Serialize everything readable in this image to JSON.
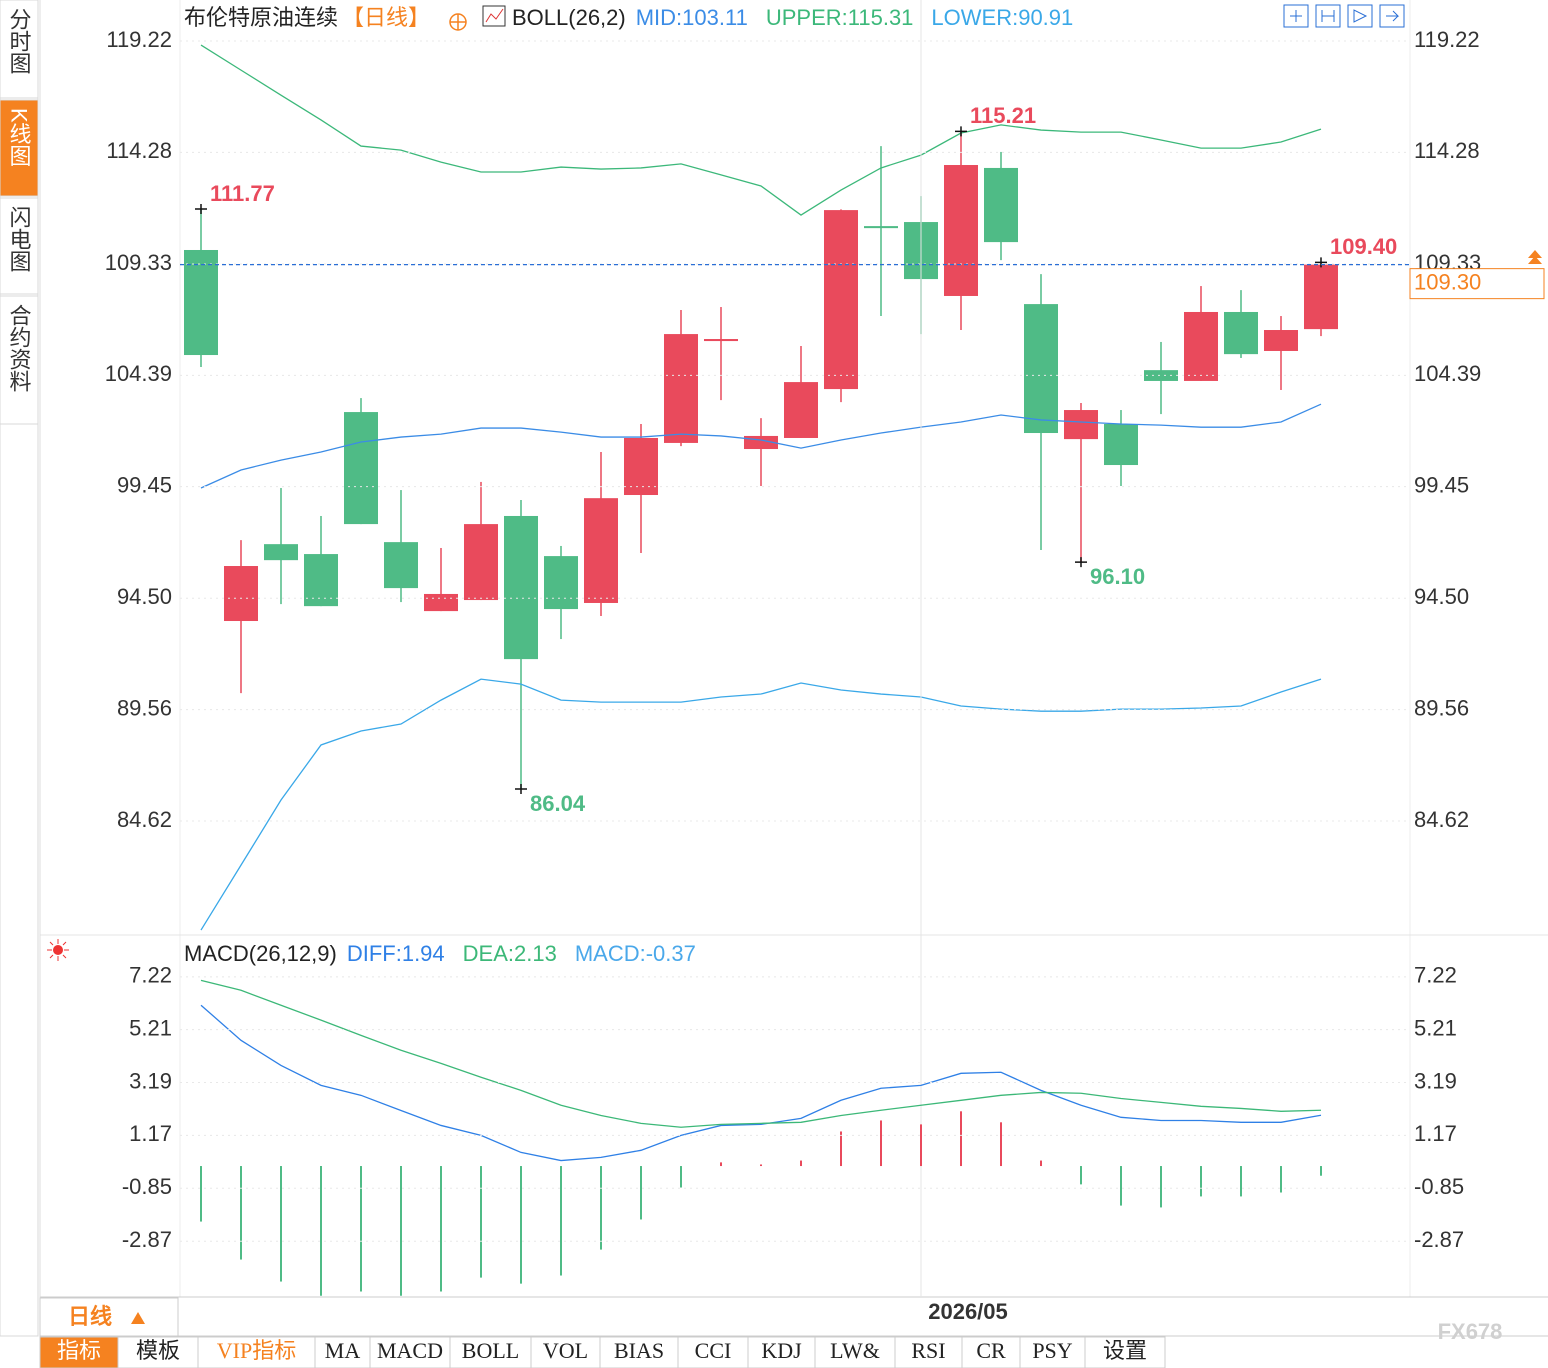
{
  "sidebar": {
    "tabs": [
      "分时图",
      "K线图",
      "闪电图",
      "合约资料"
    ],
    "active": 1
  },
  "chart_data": [
    {
      "type": "candlestick",
      "title": "布伦特原油连续",
      "period": "【日线】",
      "indicator": "BOLL(26,2)",
      "categories": [
        null,
        null,
        null,
        null,
        null,
        null,
        null,
        null,
        null,
        null,
        null,
        null,
        null,
        null,
        null,
        null,
        null,
        null,
        "2026/05",
        null,
        null,
        null,
        null,
        null,
        null,
        null,
        null,
        null,
        null
      ],
      "open": [
        109.95,
        93.49,
        96.9,
        96.46,
        102.76,
        96.99,
        93.93,
        94.42,
        98.15,
        96.37,
        94.29,
        99.08,
        101.39,
        105.91,
        101.12,
        101.61,
        103.78,
        111.01,
        111.19,
        107.91,
        113.59,
        107.55,
        101.56,
        102.23,
        104.62,
        104.14,
        107.2,
        105.47,
        106.44
      ],
      "high": [
        111.77,
        97.08,
        99.39,
        98.15,
        103.38,
        99.3,
        96.73,
        99.66,
        98.86,
        96.82,
        100.99,
        102.23,
        107.29,
        107.42,
        102.49,
        105.69,
        111.75,
        114.56,
        112.34,
        115.21,
        114.3,
        108.88,
        103.16,
        102.85,
        105.87,
        108.35,
        108.17,
        107.02,
        109.4
      ],
      "low": [
        104.76,
        90.29,
        94.24,
        94.15,
        97.79,
        94.33,
        93.93,
        94.42,
        86.04,
        92.69,
        93.71,
        96.51,
        101.25,
        103.29,
        99.48,
        101.61,
        103.2,
        107.02,
        106.22,
        106.4,
        109.5,
        96.64,
        96.1,
        99.48,
        102.67,
        104.14,
        105.16,
        103.74,
        106.13
      ],
      "close": [
        105.29,
        95.93,
        96.19,
        94.15,
        97.79,
        94.95,
        94.69,
        97.79,
        91.8,
        94.02,
        98.94,
        101.61,
        106.22,
        106.0,
        101.7,
        104.09,
        111.72,
        110.92,
        108.66,
        113.72,
        110.3,
        101.83,
        102.85,
        100.41,
        104.14,
        107.2,
        105.33,
        106.4,
        109.3
      ],
      "up_color": "#e94a5c",
      "down_color": "#4fbb86",
      "series": [
        {
          "name": "MID:103.11",
          "color": "#3b8ce6",
          "values": [
            99.39,
            100.19,
            100.63,
            100.99,
            101.43,
            101.65,
            101.78,
            102.05,
            102.05,
            101.87,
            101.65,
            101.65,
            101.78,
            101.7,
            101.52,
            101.16,
            101.52,
            101.83,
            102.09,
            102.32,
            102.63,
            102.41,
            102.32,
            102.23,
            102.18,
            102.09,
            102.09,
            102.32,
            103.11
          ]
        },
        {
          "name": "UPPER:115.31",
          "color": "#3cb87a",
          "values": [
            119.04,
            117.93,
            116.82,
            115.72,
            114.56,
            114.38,
            113.85,
            113.41,
            113.41,
            113.63,
            113.54,
            113.59,
            113.77,
            113.28,
            112.79,
            111.5,
            112.61,
            113.59,
            114.16,
            115.14,
            115.5,
            115.27,
            115.18,
            115.18,
            114.83,
            114.47,
            114.47,
            114.74,
            115.31
          ]
        },
        {
          "name": "LOWER:90.91",
          "color": "#3aa8e8",
          "values": [
            79.78,
            82.66,
            85.55,
            87.99,
            88.61,
            88.92,
            89.98,
            90.91,
            90.69,
            89.98,
            89.89,
            89.89,
            89.89,
            90.12,
            90.25,
            90.74,
            90.43,
            90.25,
            90.12,
            89.72,
            89.58,
            89.49,
            89.49,
            89.58,
            89.58,
            89.63,
            89.72,
            90.34,
            90.91
          ]
        }
      ],
      "ylim": [
        79.56,
        119.71
      ],
      "yticks": [
        119.22,
        114.28,
        109.33,
        104.39,
        99.45,
        {
          "value": 94.5,
          "label": "94.50"
        },
        89.56,
        84.62
      ],
      "annotations": [
        {
          "value": 111.77,
          "label": "111.77"
        },
        {
          "value": 115.21,
          "label": "115.21"
        },
        {
          "value": 86.04,
          "label": "86.04"
        },
        {
          "value": 96.1,
          "label": "96.10"
        },
        {
          "value": 109.4,
          "label": "109.40"
        }
      ],
      "last_price": {
        "value": 109.3,
        "label": "109.30"
      },
      "grid": true
    },
    {
      "type": "macd",
      "title": "MACD(26,12,9)",
      "series": [
        {
          "name": "DIFF:1.94",
          "color": "#2f80e6",
          "values": [
            6.14,
            4.8,
            3.84,
            3.08,
            2.7,
            2.12,
            1.55,
            1.17,
            0.52,
            0.21,
            0.33,
            0.6,
            1.17,
            1.55,
            1.59,
            1.82,
            2.51,
            2.97,
            3.08,
            3.54,
            3.58,
            2.89,
            2.32,
            1.86,
            1.74,
            1.74,
            1.67,
            1.67,
            1.94
          ]
        },
        {
          "name": "DEA:2.13",
          "color": "#3cb878",
          "values": [
            7.09,
            6.71,
            6.14,
            5.57,
            4.99,
            4.42,
            3.92,
            3.39,
            2.89,
            2.32,
            1.93,
            1.63,
            1.48,
            1.59,
            1.63,
            1.67,
            1.93,
            2.13,
            2.32,
            2.51,
            2.7,
            2.81,
            2.78,
            2.58,
            2.43,
            2.28,
            2.2,
            2.09,
            2.13
          ]
        },
        {
          "name": "MACD:-0.37",
          "type": "bar",
          "color": "#4aa8ea",
          "up_color": "#e94a5c",
          "down_color": "#4fbb86",
          "values": [
            -2.12,
            -3.57,
            -4.41,
            -4.95,
            -4.79,
            -4.95,
            -4.79,
            -4.26,
            -4.49,
            -4.18,
            -3.19,
            -2.04,
            -0.82,
            0.14,
            0.06,
            0.21,
            1.32,
            1.74,
            1.59,
            2.09,
            1.67,
            0.21,
            -0.7,
            -1.51,
            -1.58,
            -1.16,
            -1.16,
            -1.01,
            -0.37
          ]
        }
      ],
      "ylim": [
        -5.0,
        8.63
      ],
      "yticks": [
        7.22,
        5.21,
        3.19,
        1.17,
        -0.85,
        -2.87
      ],
      "grid": true
    }
  ],
  "toolbar": {
    "period": "日线",
    "items": [
      "指标",
      "模板",
      "VIP指标",
      "MA",
      "MACD",
      "BOLL",
      "VOL",
      "BIAS",
      "CCI",
      "KDJ",
      "LW&",
      "RSI",
      "CR",
      "PSY",
      "设置"
    ],
    "active": 0
  },
  "watermark": "FX678"
}
